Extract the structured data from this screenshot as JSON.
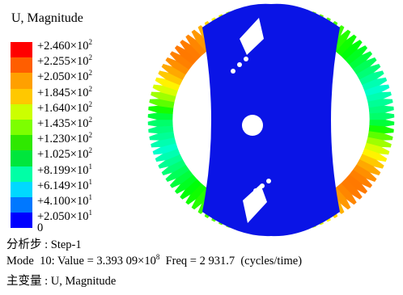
{
  "legend": {
    "title": "U, Magnitude",
    "entries": [
      {
        "text": "+2.460×10",
        "exponent": "2"
      },
      {
        "text": "+2.255×10",
        "exponent": "2"
      },
      {
        "text": "+2.050×10",
        "exponent": "2"
      },
      {
        "text": "+1.845×10",
        "exponent": "2"
      },
      {
        "text": "+1.640×10",
        "exponent": "2"
      },
      {
        "text": "+1.435×10",
        "exponent": "2"
      },
      {
        "text": "+1.230×10",
        "exponent": "2"
      },
      {
        "text": "+1.025×10",
        "exponent": "2"
      },
      {
        "text": "+8.199×10",
        "exponent": "1"
      },
      {
        "text": "+6.149×10",
        "exponent": "1"
      },
      {
        "text": "+4.100×10",
        "exponent": "1"
      },
      {
        "text": "+2.050×10",
        "exponent": "1"
      },
      {
        "text": "0"
      }
    ],
    "colors": [
      "#ff0000",
      "#ff5e00",
      "#ffa000",
      "#ffc800",
      "#ccff00",
      "#7dff00",
      "#2fe800",
      "#00e63c",
      "#00ffa6",
      "#00d9ff",
      "#0078ff",
      "#0000ff"
    ]
  },
  "footer": {
    "step": "分析步 : Step-1",
    "mode": {
      "text": "Mode  10: Value = 3.393 09×10",
      "exponent": "8",
      "rest": "  Freq = 2 931.7  (cycles/time)"
    },
    "variable": "主变量 : U, Magnitude"
  }
}
